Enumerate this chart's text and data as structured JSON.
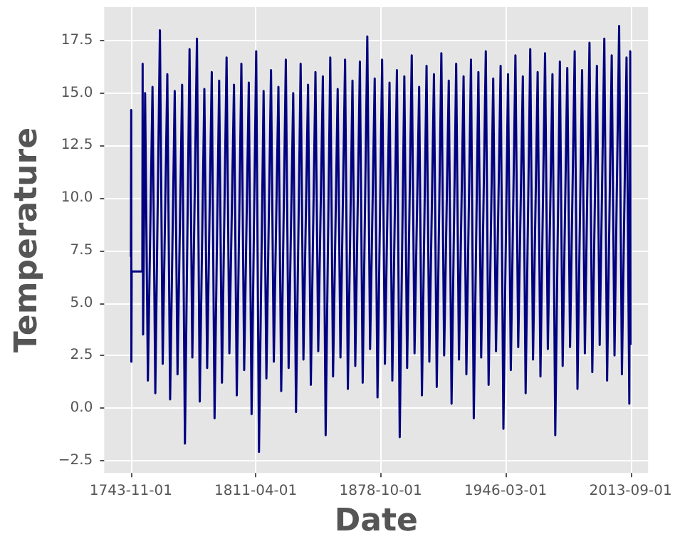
{
  "chart_data": {
    "type": "line",
    "xlabel": "Date",
    "ylabel": "Temperature",
    "ylim": [
      -3.1,
      19.1
    ],
    "yticks": [
      {
        "value": -2.5,
        "label": "−2.5"
      },
      {
        "value": 0,
        "label": "0.0"
      },
      {
        "value": 2.5,
        "label": "2.5"
      },
      {
        "value": 5,
        "label": "5.0"
      },
      {
        "value": 7.5,
        "label": "7.5"
      },
      {
        "value": 10,
        "label": "10.0"
      },
      {
        "value": 12.5,
        "label": "12.5"
      },
      {
        "value": 15,
        "label": "15.0"
      },
      {
        "value": 17.5,
        "label": "17.5"
      }
    ],
    "xlim": [
      "1729-06",
      "2023-03"
    ],
    "xticks": [
      {
        "value": "1743-11-01",
        "label": "1743-11-01"
      },
      {
        "value": "1811-04-01",
        "label": "1811-04-01"
      },
      {
        "value": "1878-10-01",
        "label": "1878-10-01"
      },
      {
        "value": "1946-03-01",
        "label": "1946-03-01"
      },
      {
        "value": "2013-09-01",
        "label": "2013-09-01"
      }
    ],
    "grid": true,
    "marker": "none",
    "line_style": "solid",
    "series": [
      {
        "color": "#000080",
        "x": [
          "1743-11",
          "1744-01",
          "1744-02",
          "1744-04",
          "1750-01",
          "1750-03",
          "1750-06",
          "1751-07",
          "1753-01",
          "1755-07",
          "1757-01",
          "1759-07",
          "1761-01",
          "1763-07",
          "1765-01",
          "1767-07",
          "1769-01",
          "1771-07",
          "1773-01",
          "1775-07",
          "1777-01",
          "1779-07",
          "1781-01",
          "1783-07",
          "1785-01",
          "1787-07",
          "1789-01",
          "1791-07",
          "1793-01",
          "1795-07",
          "1797-01",
          "1799-07",
          "1801-01",
          "1803-07",
          "1805-01",
          "1807-07",
          "1809-01",
          "1811-07",
          "1813-01",
          "1815-07",
          "1817-01",
          "1819-07",
          "1821-01",
          "1823-07",
          "1825-01",
          "1827-07",
          "1829-01",
          "1831-07",
          "1833-01",
          "1835-07",
          "1837-01",
          "1839-07",
          "1841-01",
          "1843-07",
          "1845-01",
          "1847-07",
          "1849-01",
          "1851-07",
          "1853-01",
          "1855-07",
          "1857-01",
          "1859-07",
          "1861-01",
          "1863-07",
          "1865-01",
          "1867-07",
          "1869-01",
          "1871-07",
          "1873-01",
          "1875-07",
          "1877-01",
          "1879-07",
          "1881-01",
          "1883-07",
          "1885-01",
          "1887-07",
          "1889-01",
          "1891-07",
          "1893-01",
          "1895-07",
          "1897-01",
          "1899-07",
          "1901-01",
          "1903-07",
          "1905-01",
          "1907-07",
          "1909-01",
          "1911-07",
          "1913-01",
          "1915-07",
          "1917-01",
          "1919-07",
          "1921-01",
          "1923-07",
          "1925-01",
          "1927-07",
          "1929-01",
          "1931-07",
          "1933-01",
          "1935-07",
          "1937-01",
          "1939-07",
          "1941-01",
          "1943-07",
          "1945-01",
          "1947-07",
          "1949-01",
          "1951-07",
          "1953-01",
          "1955-07",
          "1957-01",
          "1959-07",
          "1961-01",
          "1963-07",
          "1965-01",
          "1967-07",
          "1969-01",
          "1971-07",
          "1973-01",
          "1975-07",
          "1977-01",
          "1979-07",
          "1981-01",
          "1983-07",
          "1985-01",
          "1987-07",
          "1989-01",
          "1991-07",
          "1993-01",
          "1995-07",
          "1997-01",
          "1999-07",
          "2001-01",
          "2003-07",
          "2005-01",
          "2007-07",
          "2009-01",
          "2011-07",
          "2013-01",
          "2013-07",
          "2013-09"
        ],
        "values": [
          7.2,
          14.2,
          2.2,
          6.5,
          6.5,
          16.4,
          3.5,
          15.0,
          1.3,
          15.3,
          0.7,
          18.0,
          2.1,
          15.9,
          0.4,
          15.1,
          1.6,
          15.4,
          -1.7,
          17.1,
          2.4,
          17.6,
          0.3,
          15.2,
          1.9,
          16.0,
          -0.5,
          15.6,
          1.2,
          16.7,
          2.6,
          15.4,
          0.6,
          16.4,
          1.8,
          15.5,
          -0.3,
          17.0,
          -2.1,
          15.1,
          1.4,
          16.1,
          2.2,
          15.3,
          0.8,
          16.6,
          1.9,
          15.0,
          -0.2,
          16.4,
          2.3,
          15.4,
          1.1,
          16.0,
          2.7,
          15.8,
          -1.3,
          16.7,
          1.5,
          15.2,
          2.4,
          16.6,
          0.9,
          15.6,
          2.0,
          16.5,
          1.2,
          17.7,
          2.8,
          15.7,
          0.5,
          16.6,
          2.1,
          15.5,
          1.3,
          16.1,
          -1.4,
          15.8,
          1.9,
          16.8,
          2.6,
          15.3,
          0.6,
          16.3,
          2.2,
          15.9,
          1.0,
          16.9,
          2.5,
          15.6,
          0.2,
          16.4,
          2.3,
          15.8,
          1.6,
          16.6,
          -0.5,
          16.0,
          2.4,
          17.0,
          1.1,
          15.7,
          2.7,
          16.3,
          -1.0,
          15.9,
          1.8,
          16.8,
          2.9,
          15.8,
          0.7,
          17.1,
          2.3,
          16.0,
          1.5,
          16.9,
          2.8,
          15.9,
          -1.3,
          16.5,
          2.0,
          16.2,
          2.9,
          17.0,
          0.9,
          16.1,
          2.6,
          17.4,
          1.7,
          16.3,
          3.0,
          17.6,
          1.3,
          16.8,
          2.5,
          18.2,
          1.6,
          16.7,
          0.2,
          17.0,
          3.0
        ]
      }
    ]
  }
}
